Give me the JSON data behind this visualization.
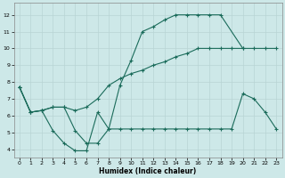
{
  "xlabel": "Humidex (Indice chaleur)",
  "xlim": [
    -0.5,
    23.5
  ],
  "ylim": [
    3.5,
    12.7
  ],
  "yticks": [
    4,
    5,
    6,
    7,
    8,
    9,
    10,
    11,
    12
  ],
  "xticks": [
    0,
    1,
    2,
    3,
    4,
    5,
    6,
    7,
    8,
    9,
    10,
    11,
    12,
    13,
    14,
    15,
    16,
    17,
    18,
    19,
    20,
    21,
    22,
    23
  ],
  "bg_color": "#cde8e8",
  "grid_color": "#b8d4d4",
  "line_color": "#1a6b5a",
  "line1_x": [
    0,
    1,
    2,
    3,
    4,
    5,
    6,
    7,
    8,
    9,
    10,
    11,
    12,
    13,
    14,
    15,
    16,
    17,
    18,
    20
  ],
  "line1_y": [
    7.7,
    6.2,
    6.3,
    6.5,
    6.5,
    5.1,
    4.35,
    4.35,
    5.2,
    7.8,
    9.3,
    11.0,
    11.3,
    11.7,
    12.0,
    12.0,
    12.0,
    12.0,
    12.0,
    10.0
  ],
  "line2_x": [
    0,
    1,
    2,
    3,
    4,
    5,
    6,
    7,
    8,
    9,
    10,
    11,
    12,
    13,
    14,
    15,
    16,
    17,
    18,
    19,
    20,
    21,
    22,
    23
  ],
  "line2_y": [
    7.7,
    6.2,
    6.3,
    6.5,
    6.5,
    6.3,
    6.5,
    7.0,
    7.8,
    8.2,
    8.5,
    8.7,
    9.0,
    9.2,
    9.5,
    9.7,
    10.0,
    10.0,
    10.0,
    10.0,
    10.0,
    10.0,
    10.0,
    10.0
  ],
  "line3_x": [
    0,
    1,
    2,
    3,
    4,
    5,
    6,
    7,
    8,
    9,
    10,
    11,
    12,
    13,
    14,
    15,
    16,
    17,
    18,
    19,
    20,
    21,
    22,
    23
  ],
  "line3_y": [
    7.7,
    6.2,
    6.3,
    5.1,
    4.35,
    3.9,
    3.9,
    6.2,
    5.2,
    5.2,
    5.2,
    5.2,
    5.2,
    5.2,
    5.2,
    5.2,
    5.2,
    5.2,
    5.2,
    5.2,
    7.3,
    7.0,
    6.2,
    5.2
  ]
}
